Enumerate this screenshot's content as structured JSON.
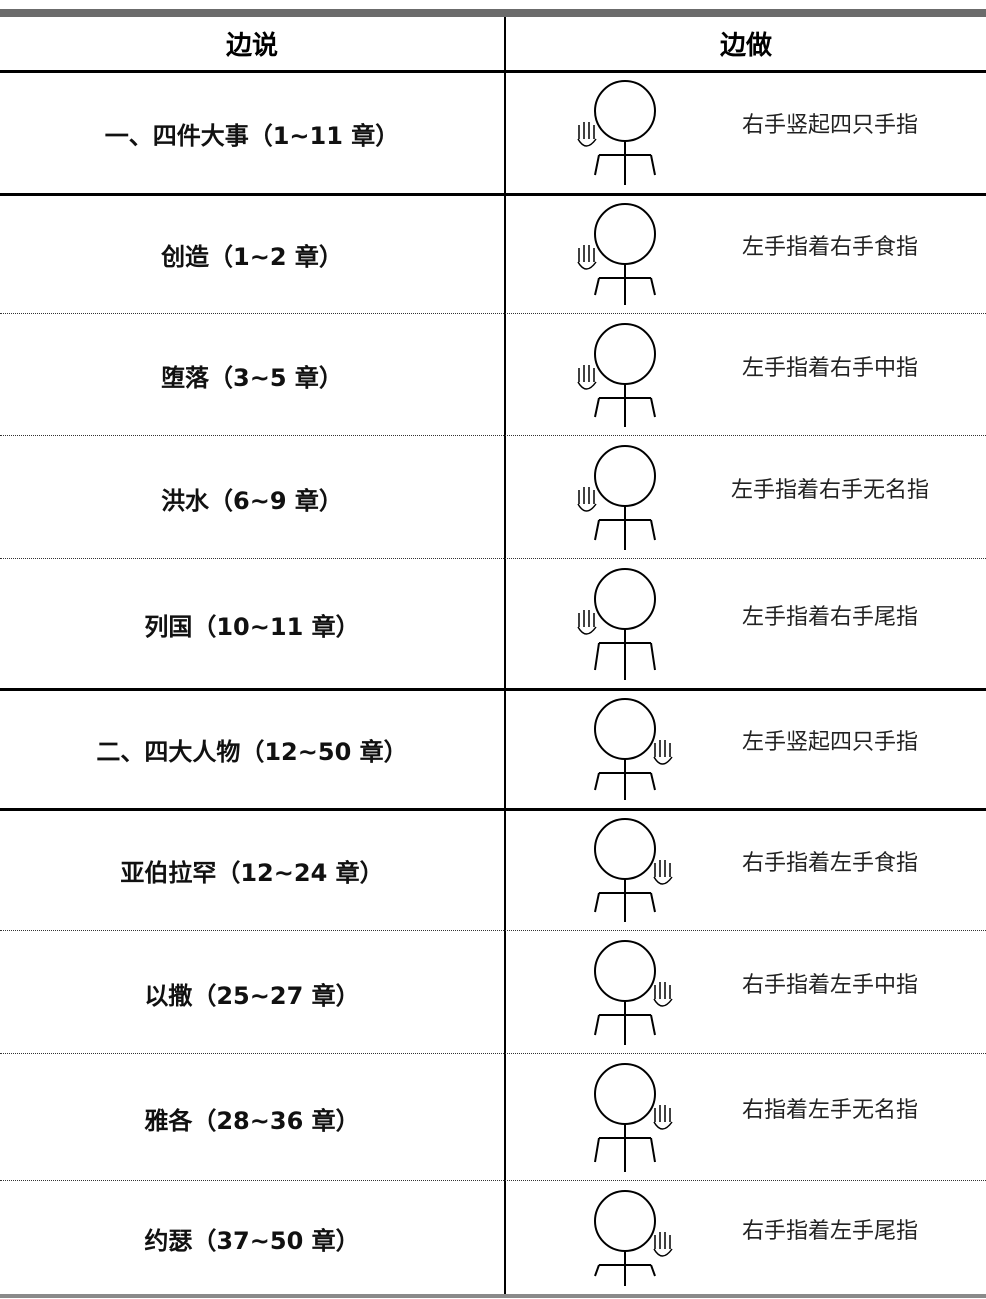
{
  "table": {
    "header": [
      "边说",
      "边做"
    ],
    "rows": [
      [
        "一、四件大事（1~11 章）",
        "右手竖起四只手指"
      ],
      [
        "创造（1~2 章）",
        "左手指着右手食指"
      ],
      [
        "堕落（3~5 章）",
        "左手指着右手中指"
      ],
      [
        "洪水（6~9 章）",
        "左手指着右手无名指"
      ],
      [
        "列国（10~11 章）",
        "左手指着右手尾指"
      ],
      [
        "二、四大人物（12~50 章）",
        "左手竖起四只手指"
      ],
      [
        "亚伯拉罕（12~24 章）",
        "右手指着左手食指"
      ],
      [
        "以撒（25~27 章）",
        "右手指着左手中指"
      ],
      [
        "雅各（28~36 章）",
        "右指着左手无名指"
      ],
      [
        "约瑟（37~50 章）",
        "右手指着左手尾指"
      ]
    ]
  }
}
